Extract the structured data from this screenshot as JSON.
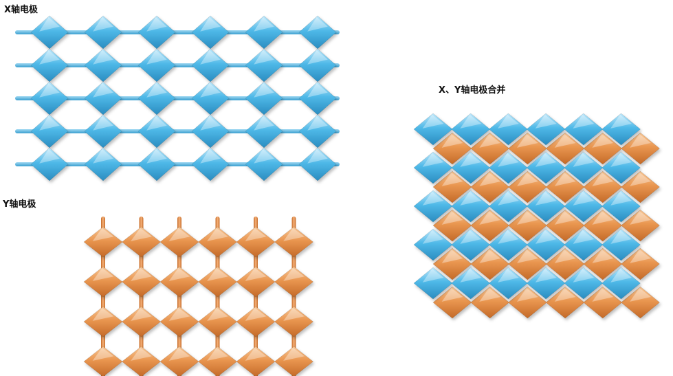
{
  "labels": {
    "x_electrode": "X轴电极",
    "y_electrode": "Y轴电极",
    "xy_merged": "X、Y轴电极合并"
  },
  "colors": {
    "x_electrode": "#4fb9e8",
    "x_electrode_light": "#bfe8fb",
    "x_electrode_dark": "#2a8cc0",
    "y_electrode": "#e99650",
    "y_electrode_light": "#f8c796",
    "y_electrode_dark": "#c46a28"
  },
  "panels": {
    "x_grid": {
      "rows": 5,
      "cols": 6
    },
    "y_grid": {
      "rows": 4,
      "cols": 6
    },
    "merged_grid": {
      "x_rows": 5,
      "y_rows": 5,
      "cols": 6
    }
  }
}
